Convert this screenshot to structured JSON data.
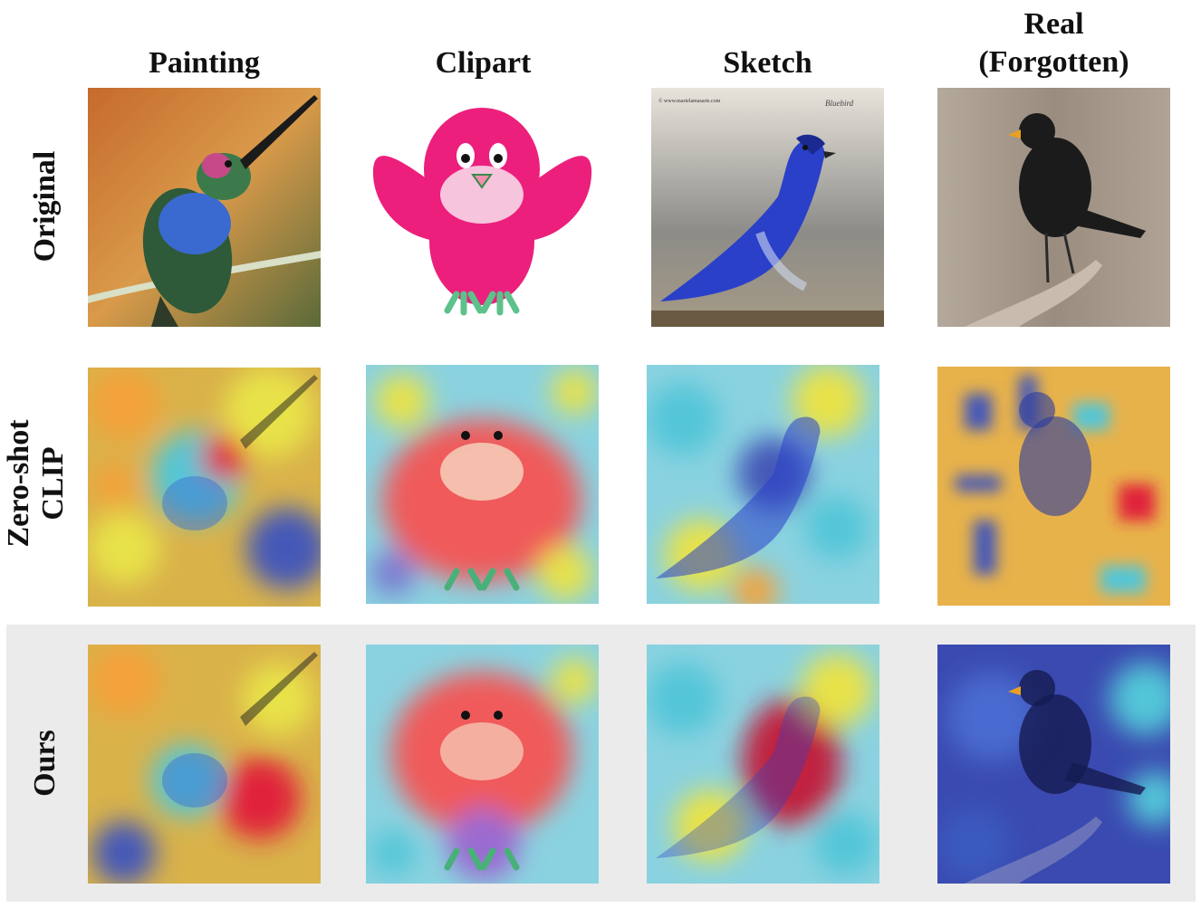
{
  "columns": [
    "Painting",
    "Clipart",
    "Sketch",
    "Real (Forgotten)"
  ],
  "column_lines": {
    "painting": "Painting",
    "clipart": "Clipart",
    "sketch": "Sketch",
    "real_line1": "Real",
    "real_line2": "(Forgotten)"
  },
  "rows": {
    "original": "Original",
    "zeroshot_line1": "Zero-shot",
    "zeroshot_line2": "CLIP",
    "ours": "Ours"
  },
  "sketch_watermark": "© www.marielamasaris.com",
  "sketch_signature": "Bluebird",
  "colors": {
    "heat_hot": "#e0203a",
    "heat_warm": "#f4a23a",
    "heat_mid": "#e8e24a",
    "heat_cool": "#52c6d8",
    "heat_cold": "#4458b8",
    "highlight_band": "#ebebeb"
  }
}
